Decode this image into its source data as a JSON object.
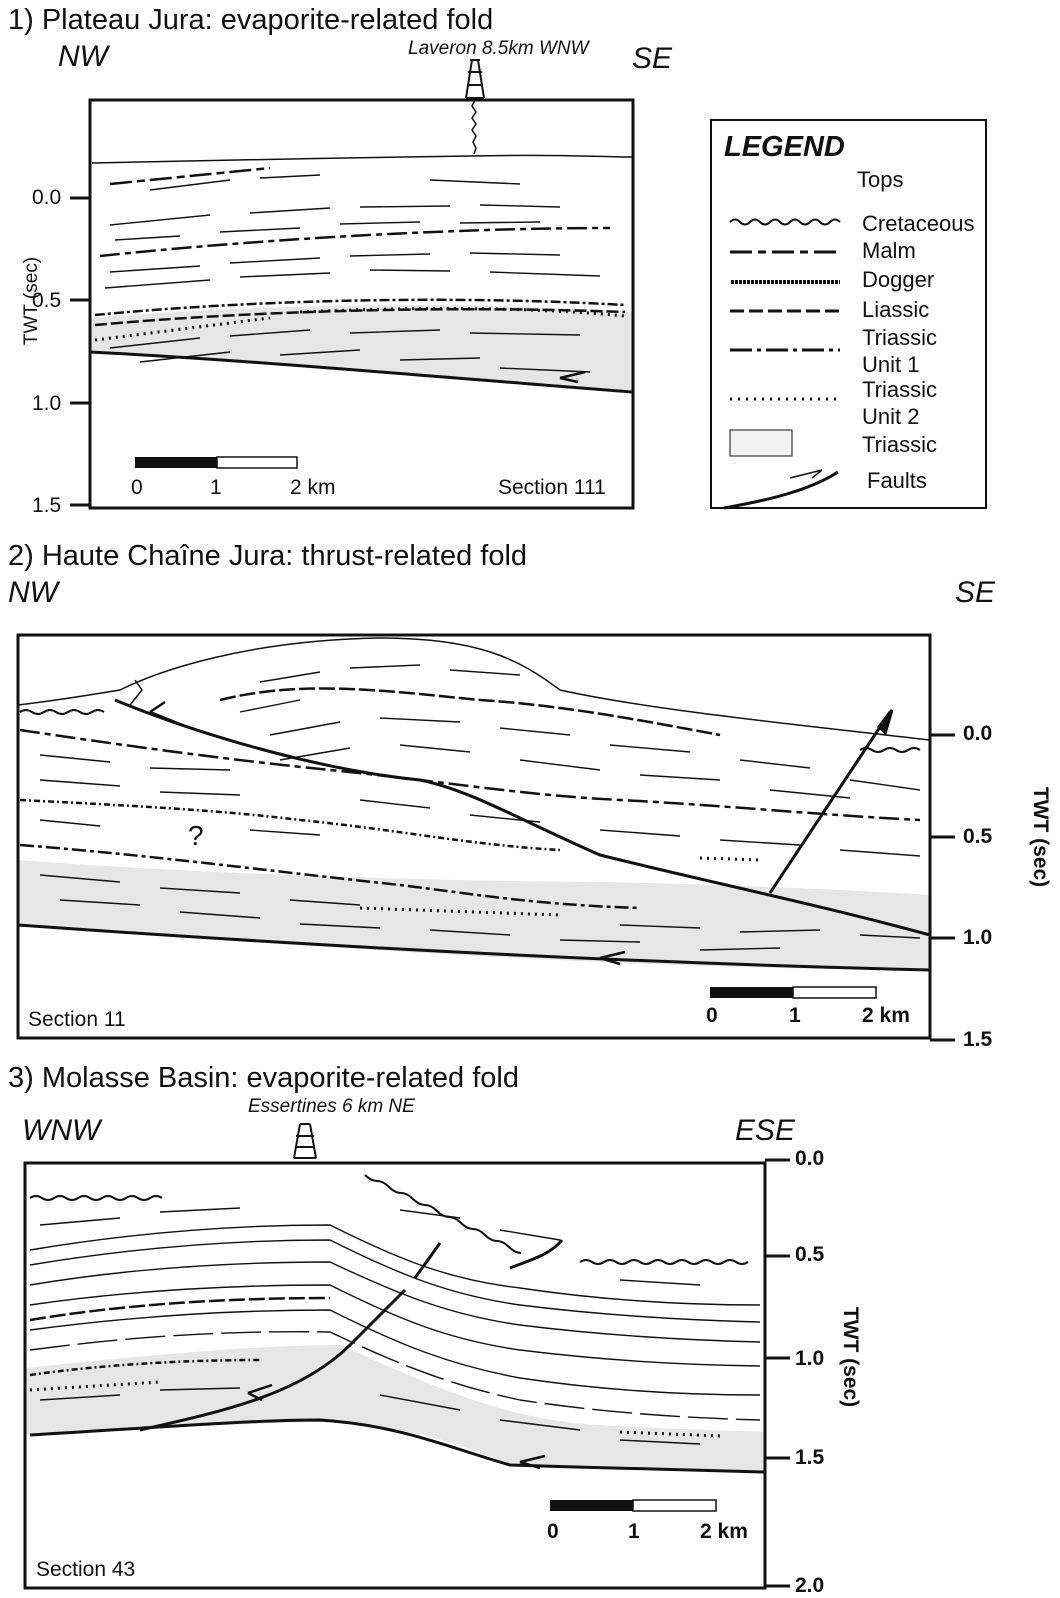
{
  "panel1": {
    "title": "1) Plateau Jura: evaporite-related fold",
    "left_dir": "NW",
    "right_dir": "SE",
    "well": "Laveron 8.5km WNW",
    "axis_label": "TWT (sec)",
    "ticks": [
      "0.0",
      "0.5",
      "1.0",
      "1.5"
    ],
    "scale": [
      "0",
      "1",
      "2 km"
    ],
    "section": "Section 111"
  },
  "legend": {
    "title": "LEGEND",
    "subtitle": "Tops",
    "items": [
      {
        "label": "Cretaceous",
        "style": "wavy"
      },
      {
        "label": "Malm",
        "style": "long-dash"
      },
      {
        "label": "Dogger",
        "style": "hatched-dash"
      },
      {
        "label": "Liassic",
        "style": "short-dash"
      },
      {
        "label": "Triassic\nUnit 1",
        "style": "dash-dot"
      },
      {
        "label": "Triassic\nUnit 2",
        "style": "dotted"
      },
      {
        "label": "Triassic",
        "style": "grey-box"
      },
      {
        "label": "Faults",
        "style": "fault-arrow"
      }
    ]
  },
  "panel2": {
    "title": "2) Haute Chaîne Jura: thrust-related fold",
    "left_dir": "NW",
    "right_dir": "SE",
    "axis_label": "TWT (sec)",
    "ticks": [
      "0.0",
      "0.5",
      "1.0",
      "1.5"
    ],
    "scale": [
      "0",
      "1",
      "2 km"
    ],
    "section": "Section 11",
    "unknown_marker": "?"
  },
  "panel3": {
    "title": "3) Molasse Basin: evaporite-related fold",
    "left_dir": "WNW",
    "right_dir": "ESE",
    "well": "Essertines 6 km NE",
    "axis_label": "TWT (sec)",
    "ticks": [
      "0.0",
      "0.5",
      "1.0",
      "1.5",
      "2.0"
    ],
    "scale": [
      "0",
      "1",
      "2 km"
    ],
    "section": "Section 43"
  },
  "colors": {
    "ink": "#111111",
    "triassic_fill": "#e6e6e6"
  }
}
